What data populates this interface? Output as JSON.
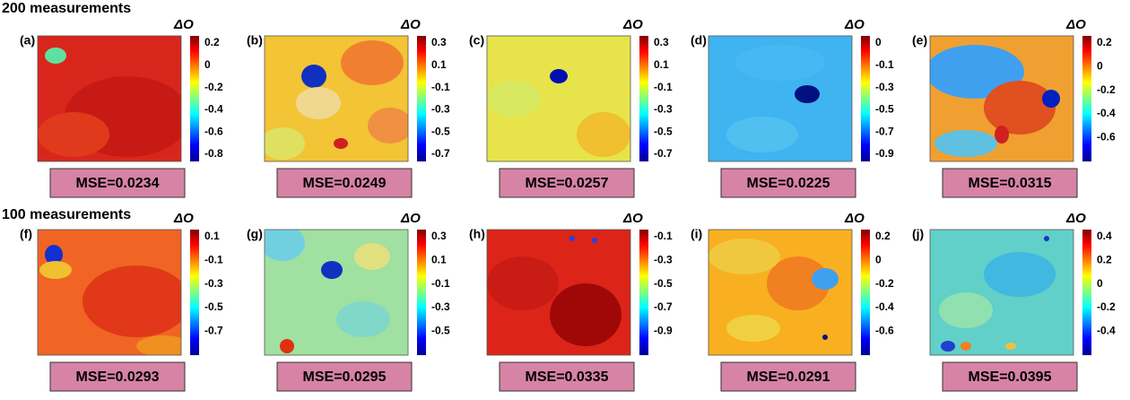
{
  "rows": [
    {
      "title": "200 measurements",
      "panels": [
        {
          "label": "(a)",
          "colorbar_label": "ΔO",
          "ticks": [
            "0.2",
            "0",
            "-0.2",
            "-0.4",
            "-0.6",
            "-0.8"
          ],
          "mse": "MSE=0.0234"
        },
        {
          "label": "(b)",
          "colorbar_label": "ΔO",
          "ticks": [
            "0.3",
            "0.1",
            "-0.1",
            "-0.3",
            "-0.5",
            "-0.7"
          ],
          "mse": "MSE=0.0249"
        },
        {
          "label": "(c)",
          "colorbar_label": "ΔO",
          "ticks": [
            "0.3",
            "0.1",
            "-0.1",
            "-0.3",
            "-0.5",
            "-0.7"
          ],
          "mse": "MSE=0.0257"
        },
        {
          "label": "(d)",
          "colorbar_label": "ΔO",
          "ticks": [
            "0",
            "-0.1",
            "-0.3",
            "-0.5",
            "-0.7",
            "-0.9"
          ],
          "mse": "MSE=0.0225"
        },
        {
          "label": "(e)",
          "colorbar_label": "ΔO",
          "ticks": [
            "0.2",
            "0",
            "-0.2",
            "-0.4",
            "-0.6"
          ],
          "mse": "MSE=0.0315"
        }
      ]
    },
    {
      "title": "100 measurements",
      "panels": [
        {
          "label": "(f)",
          "colorbar_label": "ΔO",
          "ticks": [
            "0.1",
            "-0.1",
            "-0.3",
            "-0.5",
            "-0.7"
          ],
          "mse": "MSE=0.0293"
        },
        {
          "label": "(g)",
          "colorbar_label": "ΔO",
          "ticks": [
            "0.3",
            "0.1",
            "-0.1",
            "-0.3",
            "-0.5"
          ],
          "mse": "MSE=0.0295"
        },
        {
          "label": "(h)",
          "colorbar_label": "ΔO",
          "ticks": [
            "-0.1",
            "-0.3",
            "-0.5",
            "-0.7",
            "-0.9"
          ],
          "mse": "MSE=0.0335"
        },
        {
          "label": "(i)",
          "colorbar_label": "ΔO",
          "ticks": [
            "0.2",
            "0",
            "-0.2",
            "-0.4",
            "-0.6"
          ],
          "mse": "MSE=0.0291"
        },
        {
          "label": "(j)",
          "colorbar_label": "ΔO",
          "ticks": [
            "0.4",
            "0.2",
            "0",
            "-0.2",
            "-0.4"
          ],
          "mse": "MSE=0.0395"
        }
      ]
    }
  ]
}
